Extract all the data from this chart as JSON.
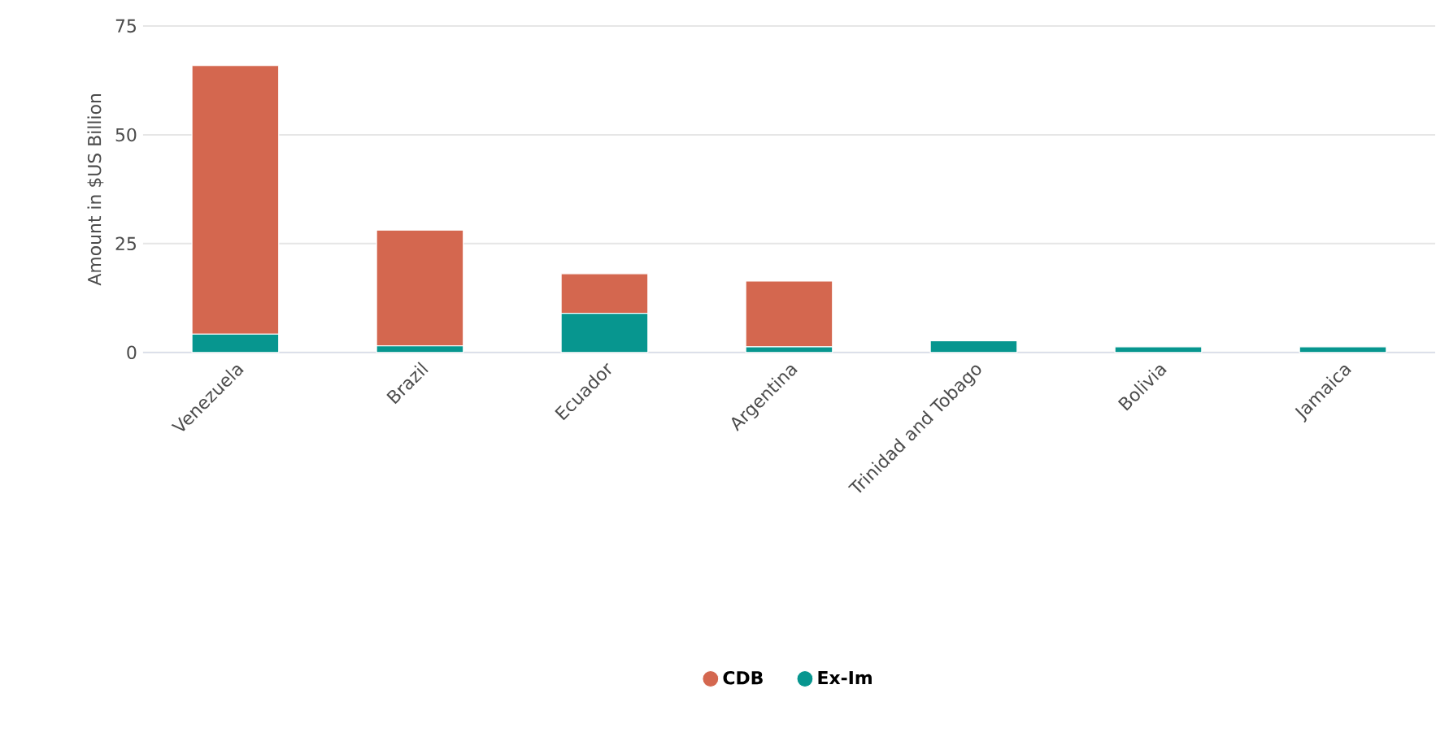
{
  "chart_data": {
    "type": "bar",
    "stacked": true,
    "ylabel": "Amount in $US Billion",
    "categories": [
      "Venezuela",
      "Brazil",
      "Ecuador",
      "Argentina",
      "Trinidad and Tobago",
      "Bolivia",
      "Jamaica"
    ],
    "series": [
      {
        "name": "Ex-Im",
        "color": "#07968f",
        "values": [
          4.2,
          1.5,
          9,
          1.3,
          2.7,
          1.3,
          1.3
        ]
      },
      {
        "name": "CDB",
        "color": "#d4674f",
        "values": [
          61.7,
          26.6,
          9.1,
          15.1,
          null,
          null,
          null
        ]
      }
    ],
    "ylim": [
      0,
      75
    ],
    "yticks": [
      0,
      25,
      50,
      75
    ],
    "grid": "y",
    "legend": "bottom"
  }
}
